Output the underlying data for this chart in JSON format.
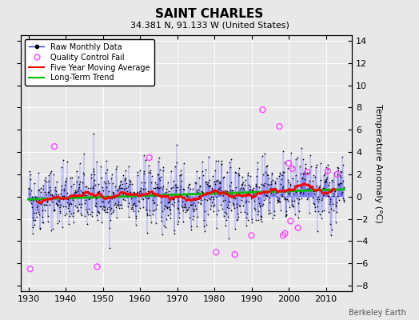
{
  "title": "SAINT CHARLES",
  "subtitle": "34.381 N, 91.133 W (United States)",
  "ylabel": "Temperature Anomaly (°C)",
  "credit": "Berkeley Earth",
  "xlim": [
    1928,
    2017
  ],
  "ylim": [
    -8.5,
    14.5
  ],
  "yticks": [
    -8,
    -6,
    -4,
    -2,
    0,
    2,
    4,
    6,
    8,
    10,
    12,
    14
  ],
  "xticks": [
    1930,
    1940,
    1950,
    1960,
    1970,
    1980,
    1990,
    2000,
    2010
  ],
  "seed": 42,
  "n_months": 1020,
  "start_year": 1930.0,
  "background_color": "#e8e8e8",
  "line_color": "#3333ff",
  "ma_color": "#ff0000",
  "trend_color": "#00bb00",
  "qc_color": "#ff44ff",
  "dot_color": "#000000"
}
